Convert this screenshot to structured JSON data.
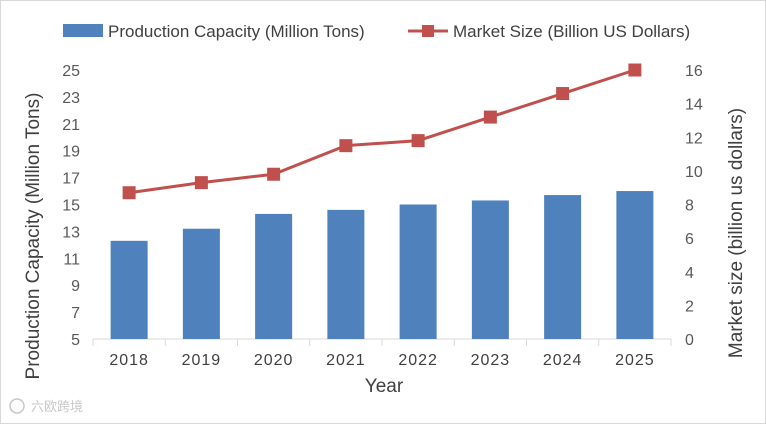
{
  "chart_data": {
    "type": "bar+line",
    "categories": [
      "2018",
      "2019",
      "2020",
      "2021",
      "2022",
      "2023",
      "2024",
      "2025"
    ],
    "series": [
      {
        "name": "Production Capacity (Million Tons)",
        "type": "bar",
        "axis": "left",
        "values": [
          12.3,
          13.2,
          14.3,
          14.6,
          15.0,
          15.3,
          15.7,
          16.0
        ],
        "color": "#4f81bd"
      },
      {
        "name": "Market Size (Billion US Dollars)",
        "type": "line",
        "axis": "right",
        "values": [
          8.7,
          9.3,
          9.8,
          11.5,
          11.8,
          13.2,
          14.6,
          16.0
        ],
        "color": "#c0504d"
      }
    ],
    "xlabel": "Year",
    "ylabel_left": "Production Capacity (Million Tons)",
    "ylabel_right": "Market size (billion us dollars)",
    "ylim_left": [
      5,
      25
    ],
    "yticks_left": [
      5,
      7,
      9,
      11,
      13,
      15,
      17,
      19,
      21,
      23,
      25
    ],
    "ylim_right": [
      0,
      16
    ],
    "yticks_right": [
      0,
      2,
      4,
      6,
      8,
      10,
      12,
      14,
      16
    ],
    "grid": false,
    "legend_position": "top"
  },
  "watermark": "六欧跨境"
}
